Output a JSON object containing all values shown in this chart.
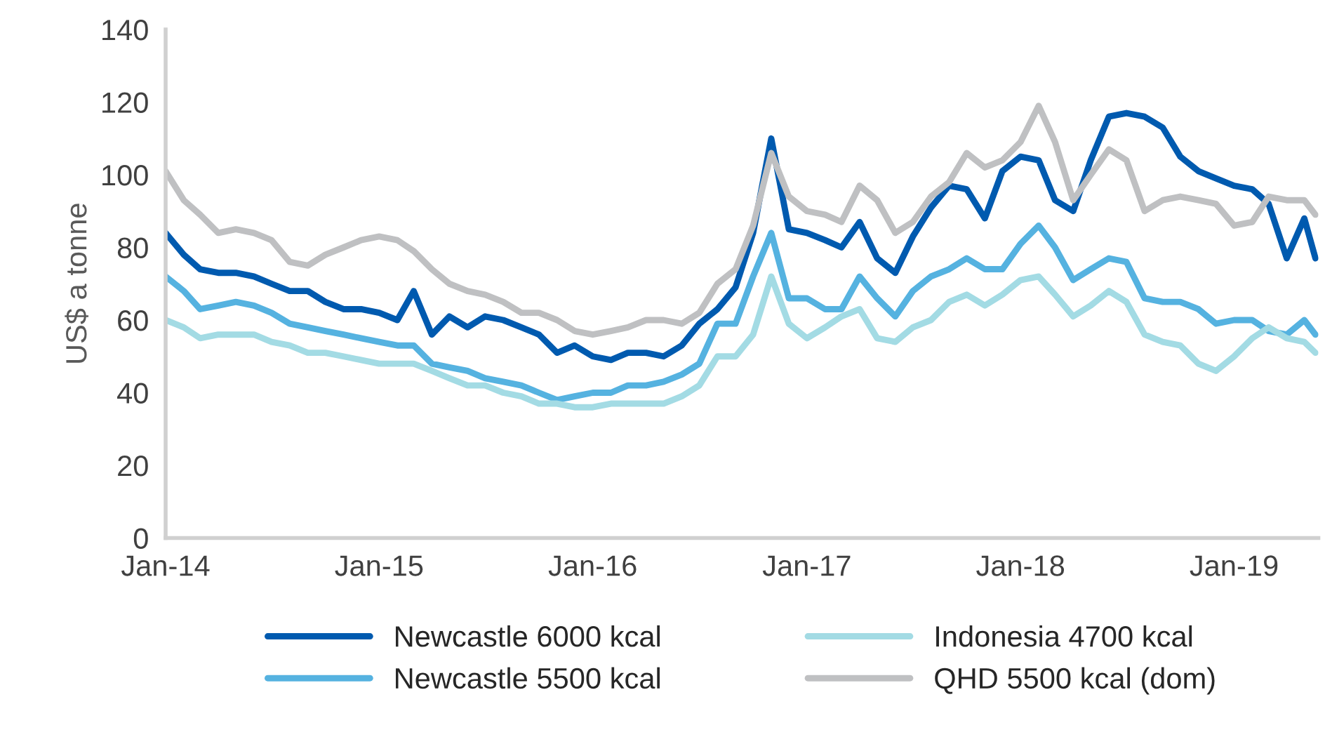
{
  "chart_data": {
    "type": "line",
    "ylabel": "US$ a tonne",
    "x": [
      "2014-01",
      "2014-02",
      "2014-03",
      "2014-04",
      "2014-05",
      "2014-06",
      "2014-07",
      "2014-08",
      "2014-09",
      "2014-10",
      "2014-11",
      "2014-12",
      "2015-01",
      "2015-02",
      "2015-03",
      "2015-04",
      "2015-05",
      "2015-06",
      "2015-07",
      "2015-08",
      "2015-09",
      "2015-10",
      "2015-11",
      "2015-12",
      "2016-01",
      "2016-02",
      "2016-03",
      "2016-04",
      "2016-05",
      "2016-06",
      "2016-07",
      "2016-08",
      "2016-09",
      "2016-10",
      "2016-11",
      "2016-12",
      "2017-01",
      "2017-02",
      "2017-03",
      "2017-04",
      "2017-05",
      "2017-06",
      "2017-07",
      "2017-08",
      "2017-09",
      "2017-10",
      "2017-11",
      "2017-12",
      "2018-01",
      "2018-02",
      "2018-03",
      "2018-04",
      "2018-05",
      "2018-06",
      "2018-07",
      "2018-08",
      "2018-09",
      "2018-10",
      "2018-11",
      "2018-12",
      "2019-01",
      "2019-02",
      "2019-03",
      "2019-04",
      "2019-05",
      "2019-05-20"
    ],
    "series": [
      {
        "name": "Newcastle 6000 kcal",
        "color": "#005aaf",
        "values": [
          84,
          78,
          74,
          73,
          73,
          72,
          70,
          68,
          68,
          65,
          63,
          63,
          62,
          60,
          68,
          56,
          61,
          58,
          61,
          60,
          58,
          56,
          51,
          53,
          50,
          49,
          51,
          51,
          50,
          53,
          59,
          63,
          69,
          84,
          110,
          85,
          84,
          82,
          80,
          87,
          77,
          73,
          83,
          91,
          97,
          96,
          88,
          101,
          105,
          104,
          93,
          90,
          104,
          116,
          117,
          116,
          113,
          105,
          101,
          99,
          97,
          96,
          92,
          77,
          88,
          77
        ]
      },
      {
        "name": "Newcastle 5500 kcal",
        "color": "#55b2e0",
        "values": [
          72,
          68,
          63,
          64,
          65,
          64,
          62,
          59,
          58,
          57,
          56,
          55,
          54,
          53,
          53,
          48,
          47,
          46,
          44,
          43,
          42,
          40,
          38,
          39,
          40,
          40,
          42,
          42,
          43,
          45,
          48,
          59,
          59,
          72,
          84,
          66,
          66,
          63,
          63,
          72,
          66,
          61,
          68,
          72,
          74,
          77,
          74,
          74,
          81,
          86,
          80,
          71,
          74,
          77,
          76,
          66,
          65,
          65,
          63,
          59,
          60,
          60,
          57,
          56,
          60,
          56
        ]
      },
      {
        "name": "Indonesia 4700 kcal",
        "color": "#a3dbe4",
        "values": [
          60,
          58,
          55,
          56,
          56,
          56,
          54,
          53,
          51,
          51,
          50,
          49,
          48,
          48,
          48,
          46,
          44,
          42,
          42,
          40,
          39,
          37,
          37,
          36,
          36,
          37,
          37,
          37,
          37,
          39,
          42,
          50,
          50,
          56,
          72,
          59,
          55,
          58,
          61,
          63,
          55,
          54,
          58,
          60,
          65,
          67,
          64,
          67,
          71,
          72,
          67,
          61,
          64,
          68,
          65,
          56,
          54,
          53,
          48,
          46,
          50,
          55,
          58,
          55,
          54,
          51
        ]
      },
      {
        "name": "QHD 5500 kcal (dom)",
        "color": "#bfc0c2",
        "values": [
          101,
          93,
          89,
          84,
          85,
          84,
          82,
          76,
          75,
          78,
          80,
          82,
          83,
          82,
          79,
          74,
          70,
          68,
          67,
          65,
          62,
          62,
          60,
          57,
          56,
          57,
          58,
          60,
          60,
          59,
          62,
          70,
          74,
          86,
          106,
          94,
          90,
          89,
          87,
          97,
          93,
          84,
          87,
          94,
          98,
          106,
          102,
          104,
          109,
          119,
          109,
          93,
          100,
          107,
          104,
          90,
          93,
          94,
          93,
          92,
          86,
          87,
          94,
          93,
          93,
          89
        ]
      }
    ],
    "xlim": [
      "2014-01",
      "2019-05-25"
    ],
    "xticks": [
      {
        "value": "2014-01",
        "label": "Jan-14"
      },
      {
        "value": "2015-01",
        "label": "Jan-15"
      },
      {
        "value": "2016-01",
        "label": "Jan-16"
      },
      {
        "value": "2017-01",
        "label": "Jan-17"
      },
      {
        "value": "2018-01",
        "label": "Jan-18"
      },
      {
        "value": "2019-01",
        "label": "Jan-19"
      }
    ],
    "ylim": [
      0,
      140
    ],
    "yticks": [
      0,
      20,
      40,
      60,
      80,
      100,
      120,
      140
    ],
    "grid": false,
    "legend": "bottom",
    "marker": "none",
    "line_style": "solid"
  }
}
